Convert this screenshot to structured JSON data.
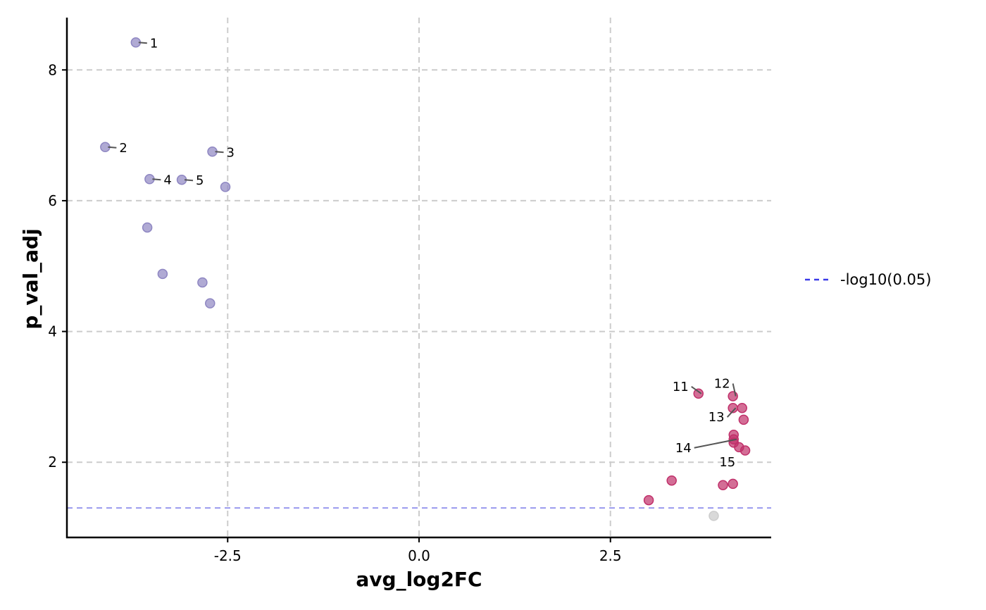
{
  "chart_data": {
    "type": "scatter",
    "xlabel": "avg_log2FC",
    "ylabel": "p_val_adj",
    "xlim": [
      -4.6,
      4.6
    ],
    "ylim": [
      0.85,
      8.8
    ],
    "x_ticks": [
      -2.5,
      0.0,
      2.5
    ],
    "x_tick_labels": [
      "-2.5",
      "0.0",
      "2.5"
    ],
    "y_ticks": [
      2,
      4,
      6,
      8
    ],
    "y_tick_labels": [
      "2",
      "4",
      "6",
      "8"
    ],
    "grid": true,
    "grid_style": "dashed",
    "threshold": {
      "y": 1.301,
      "label": "-log10(0.05)",
      "color": "#3a3ae8"
    },
    "legend": {
      "position": "right",
      "entries": [
        "-log10(0.05)"
      ]
    },
    "colors": {
      "down": "#8e86c2",
      "up": "#c0306a",
      "ns": "#cccccc"
    },
    "points": [
      {
        "x": -3.7,
        "y": 8.42,
        "group": "down",
        "label": "1"
      },
      {
        "x": -4.1,
        "y": 6.82,
        "group": "down",
        "label": "2"
      },
      {
        "x": -2.7,
        "y": 6.75,
        "group": "down",
        "label": "3"
      },
      {
        "x": -3.52,
        "y": 6.33,
        "group": "down",
        "label": "4"
      },
      {
        "x": -3.1,
        "y": 6.32,
        "group": "down",
        "label": "5"
      },
      {
        "x": -2.53,
        "y": 6.21,
        "group": "down",
        "label": ""
      },
      {
        "x": -3.55,
        "y": 5.59,
        "group": "down",
        "label": ""
      },
      {
        "x": -3.35,
        "y": 4.88,
        "group": "down",
        "label": ""
      },
      {
        "x": -2.83,
        "y": 4.75,
        "group": "down",
        "label": ""
      },
      {
        "x": -2.73,
        "y": 4.43,
        "group": "down",
        "label": ""
      },
      {
        "x": 3.65,
        "y": 3.05,
        "group": "up",
        "label": "11"
      },
      {
        "x": 4.1,
        "y": 3.01,
        "group": "up",
        "label": "12"
      },
      {
        "x": 4.1,
        "y": 2.83,
        "group": "up",
        "label": "13"
      },
      {
        "x": 4.22,
        "y": 2.83,
        "group": "up",
        "label": ""
      },
      {
        "x": 4.24,
        "y": 2.65,
        "group": "up",
        "label": ""
      },
      {
        "x": 4.11,
        "y": 2.42,
        "group": "up",
        "label": ""
      },
      {
        "x": 4.11,
        "y": 2.35,
        "group": "up",
        "label": "14"
      },
      {
        "x": 4.11,
        "y": 2.3,
        "group": "up",
        "label": ""
      },
      {
        "x": 4.18,
        "y": 2.23,
        "group": "up",
        "label": "15"
      },
      {
        "x": 4.26,
        "y": 2.18,
        "group": "up",
        "label": ""
      },
      {
        "x": 3.3,
        "y": 1.72,
        "group": "up",
        "label": ""
      },
      {
        "x": 4.1,
        "y": 1.67,
        "group": "up",
        "label": ""
      },
      {
        "x": 3.97,
        "y": 1.65,
        "group": "up",
        "label": ""
      },
      {
        "x": 3.0,
        "y": 1.42,
        "group": "up",
        "label": ""
      },
      {
        "x": 3.85,
        "y": 1.18,
        "group": "ns",
        "label": ""
      }
    ]
  }
}
